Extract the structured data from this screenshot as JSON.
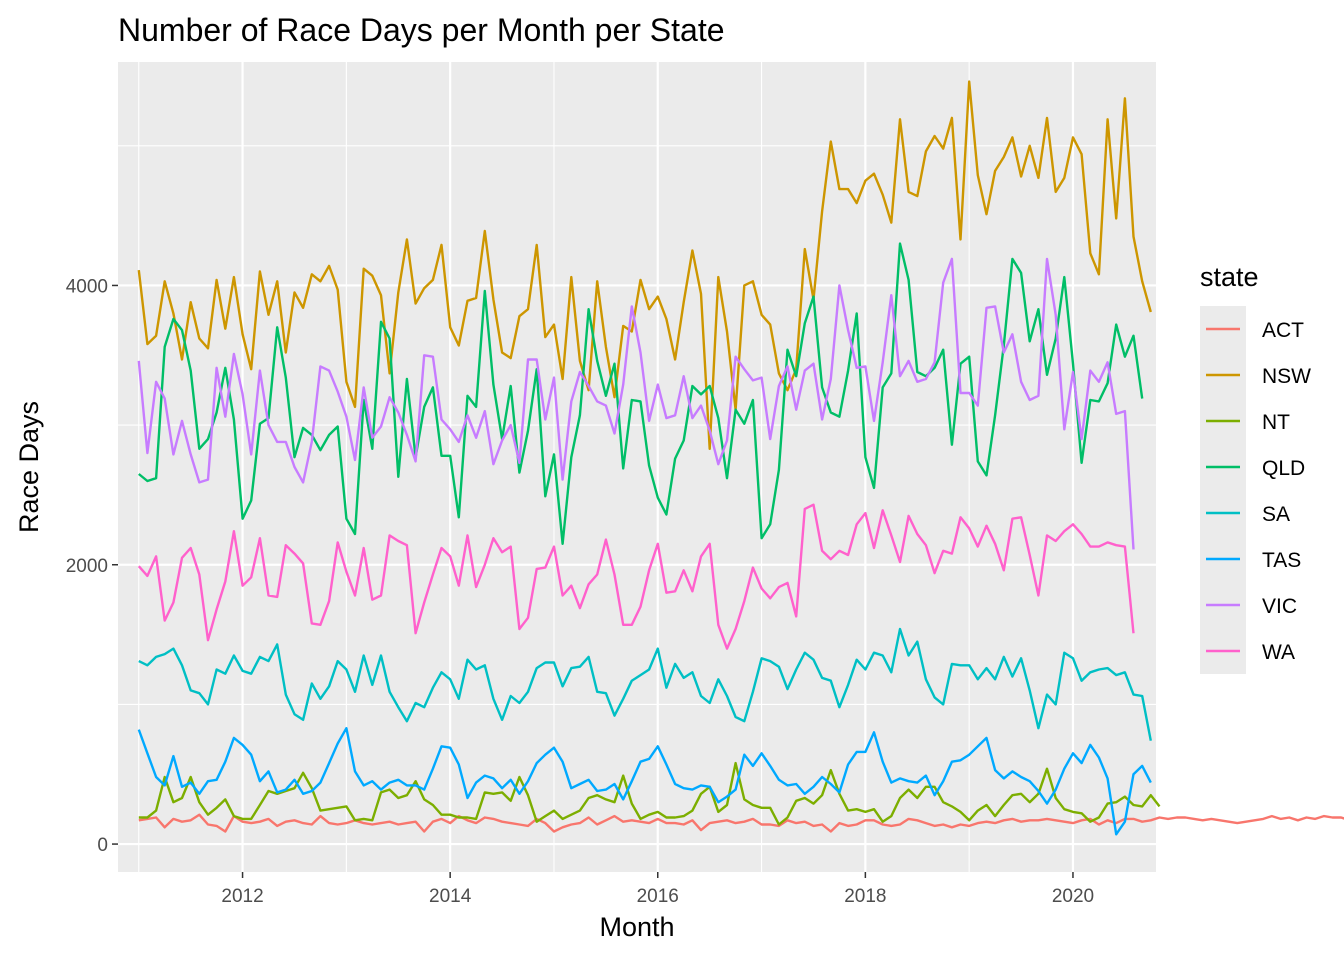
{
  "chart_data": {
    "type": "line",
    "title": "Number of Race Days per Month per State",
    "xlabel": "Month",
    "ylabel": "Race Days",
    "x_ticks": [
      "2012",
      "2014",
      "2016",
      "2018",
      "2020"
    ],
    "y_ticks": [
      "0",
      "2000",
      "4000"
    ],
    "xlim": [
      2010.8,
      2020.8
    ],
    "ylim": [
      -200,
      5600
    ],
    "grid": true,
    "legend_title": "state",
    "legend_position": "right",
    "start": "2011-01",
    "series": [
      {
        "name": "ACT",
        "color": "#F8766D",
        "values": [
          170,
          180,
          190,
          120,
          180,
          160,
          170,
          210,
          140,
          130,
          90,
          200,
          160,
          150,
          160,
          180,
          130,
          160,
          170,
          150,
          140,
          200,
          150,
          140,
          150,
          170,
          150,
          140,
          150,
          160,
          140,
          150,
          160,
          90,
          160,
          180,
          150,
          200,
          170,
          150,
          190,
          180,
          160,
          150,
          140,
          130,
          180,
          150,
          90,
          120,
          140,
          150,
          190,
          140,
          170,
          200,
          160,
          170,
          160,
          150,
          180,
          150,
          150,
          140,
          170,
          100,
          150,
          160,
          170,
          150,
          160,
          180,
          140,
          140,
          130,
          170,
          150,
          160,
          130,
          140,
          90,
          150,
          130,
          140,
          170,
          170,
          140,
          130,
          140,
          180,
          170,
          150,
          130,
          140,
          120,
          140,
          130,
          150,
          160,
          150,
          170,
          180,
          160,
          170,
          170,
          180,
          170,
          160,
          150,
          170,
          180,
          140,
          170,
          150,
          180,
          180,
          160,
          170,
          190,
          180,
          190,
          190,
          180,
          170,
          180,
          170,
          160,
          150,
          160,
          170,
          180,
          200,
          180,
          190,
          170,
          190,
          180,
          200,
          190,
          190,
          170,
          160,
          160,
          170,
          190,
          190,
          180,
          200,
          170,
          130,
          190,
          180,
          160,
          150,
          160,
          130,
          160
        ]
      },
      {
        "name": "NSW",
        "color": "#CD9600",
        "values": [
          4110,
          3580,
          3640,
          4030,
          3800,
          3470,
          3880,
          3620,
          3550,
          4040,
          3690,
          4060,
          3650,
          3400,
          4100,
          3790,
          4030,
          3520,
          3950,
          3840,
          4080,
          4030,
          4140,
          3970,
          3310,
          3130,
          4120,
          4070,
          3930,
          3370,
          3950,
          4330,
          3870,
          3980,
          4040,
          4290,
          3700,
          3570,
          3890,
          3910,
          4390,
          3900,
          3520,
          3480,
          3780,
          3830,
          4290,
          3630,
          3720,
          3330,
          4060,
          3460,
          3250,
          4030,
          3560,
          3200,
          3710,
          3670,
          4040,
          3830,
          3920,
          3760,
          3470,
          3880,
          4250,
          3940,
          2830,
          4060,
          3670,
          3110,
          4000,
          4030,
          3790,
          3720,
          3370,
          3250,
          3400,
          4260,
          3900,
          4530,
          5030,
          4690,
          4690,
          4590,
          4750,
          4800,
          4650,
          4450,
          5190,
          4670,
          4640,
          4960,
          5070,
          4980,
          5200,
          4330,
          5460,
          4790,
          4510,
          4820,
          4920,
          5060,
          4780,
          5000,
          4770,
          5200,
          4670,
          4770,
          5060,
          4940,
          4230,
          4080,
          5190,
          4480,
          5340,
          4350,
          4030,
          3810
        ]
      },
      {
        "name": "NT",
        "color": "#7CAE00",
        "values": [
          190,
          190,
          240,
          480,
          300,
          330,
          480,
          300,
          210,
          260,
          320,
          200,
          180,
          180,
          280,
          380,
          360,
          380,
          400,
          510,
          400,
          240,
          250,
          260,
          270,
          170,
          180,
          170,
          370,
          390,
          330,
          350,
          450,
          320,
          280,
          210,
          210,
          190,
          190,
          180,
          370,
          360,
          370,
          310,
          480,
          350,
          160,
          200,
          240,
          180,
          210,
          240,
          330,
          350,
          320,
          300,
          490,
          290,
          180,
          210,
          230,
          190,
          190,
          200,
          240,
          360,
          410,
          230,
          280,
          580,
          320,
          280,
          260,
          260,
          140,
          190,
          310,
          330,
          290,
          350,
          530,
          360,
          240,
          250,
          230,
          250,
          160,
          200,
          330,
          390,
          330,
          410,
          410,
          300,
          270,
          230,
          170,
          240,
          280,
          200,
          280,
          350,
          360,
          300,
          360,
          540,
          330,
          250,
          230,
          220,
          160,
          190,
          290,
          300,
          340,
          280,
          270,
          350,
          270
        ]
      },
      {
        "name": "QLD",
        "color": "#00BE67",
        "values": [
          2650,
          2600,
          2620,
          3560,
          3760,
          3680,
          3390,
          2830,
          2900,
          3090,
          3410,
          3040,
          2330,
          2460,
          3010,
          3050,
          3700,
          3340,
          2770,
          2980,
          2930,
          2820,
          2930,
          2990,
          2330,
          2220,
          3180,
          2830,
          3740,
          3620,
          2630,
          3330,
          2770,
          3130,
          3270,
          2780,
          2780,
          2340,
          3210,
          3130,
          3960,
          3290,
          2900,
          3280,
          2660,
          2960,
          3400,
          2490,
          2790,
          2150,
          2770,
          3070,
          3830,
          3460,
          3210,
          3440,
          2690,
          3180,
          3170,
          2710,
          2480,
          2360,
          2760,
          2890,
          3280,
          3220,
          3280,
          3050,
          2620,
          3110,
          3010,
          3180,
          2190,
          2290,
          2680,
          3540,
          3350,
          3730,
          3920,
          3270,
          3090,
          3060,
          3390,
          3800,
          2770,
          2550,
          3270,
          3370,
          4300,
          4040,
          3380,
          3350,
          3410,
          3540,
          2860,
          3440,
          3490,
          2740,
          2640,
          3070,
          3570,
          4190,
          4090,
          3600,
          3830,
          3360,
          3620,
          4060,
          3440,
          2730,
          3180,
          3170,
          3300,
          3720,
          3490,
          3640,
          3190
        ]
      },
      {
        "name": "SA",
        "color": "#00BFC4",
        "values": [
          1310,
          1280,
          1340,
          1360,
          1400,
          1280,
          1100,
          1080,
          1000,
          1250,
          1220,
          1350,
          1240,
          1220,
          1340,
          1310,
          1430,
          1070,
          930,
          890,
          1150,
          1040,
          1130,
          1310,
          1250,
          1090,
          1350,
          1140,
          1350,
          1090,
          980,
          880,
          1010,
          980,
          1120,
          1230,
          1180,
          1040,
          1320,
          1250,
          1280,
          1040,
          890,
          1060,
          1010,
          1090,
          1260,
          1300,
          1300,
          1130,
          1260,
          1270,
          1340,
          1090,
          1080,
          920,
          1040,
          1170,
          1210,
          1250,
          1400,
          1120,
          1290,
          1190,
          1230,
          1060,
          1010,
          1180,
          1060,
          910,
          880,
          1090,
          1330,
          1310,
          1270,
          1110,
          1250,
          1370,
          1320,
          1190,
          1170,
          980,
          1140,
          1320,
          1250,
          1370,
          1350,
          1230,
          1540,
          1350,
          1450,
          1180,
          1050,
          1000,
          1290,
          1280,
          1280,
          1180,
          1260,
          1180,
          1340,
          1200,
          1330,
          1100,
          830,
          1070,
          1000,
          1370,
          1330,
          1170,
          1230,
          1250,
          1260,
          1210,
          1230,
          1070,
          1060,
          740
        ]
      },
      {
        "name": "TAS",
        "color": "#00A9FF",
        "values": [
          820,
          650,
          480,
          420,
          630,
          410,
          440,
          360,
          450,
          460,
          590,
          760,
          710,
          640,
          450,
          520,
          370,
          390,
          460,
          360,
          380,
          440,
          580,
          720,
          830,
          520,
          420,
          450,
          390,
          440,
          460,
          420,
          420,
          390,
          540,
          700,
          690,
          570,
          330,
          440,
          490,
          470,
          400,
          460,
          360,
          450,
          580,
          640,
          690,
          590,
          400,
          430,
          460,
          380,
          390,
          430,
          320,
          450,
          590,
          610,
          700,
          570,
          430,
          400,
          390,
          420,
          410,
          300,
          340,
          390,
          640,
          560,
          650,
          560,
          460,
          420,
          430,
          360,
          410,
          480,
          430,
          370,
          570,
          660,
          660,
          800,
          590,
          440,
          470,
          450,
          440,
          490,
          350,
          450,
          590,
          600,
          640,
          700,
          760,
          530,
          470,
          520,
          480,
          450,
          380,
          290,
          390,
          540,
          650,
          580,
          710,
          620,
          470,
          70,
          160,
          500,
          560,
          440
        ]
      },
      {
        "name": "VIC",
        "color": "#C77CFF",
        "values": [
          3460,
          2800,
          3310,
          3190,
          2790,
          3030,
          2790,
          2590,
          2610,
          3410,
          3060,
          3510,
          3220,
          2790,
          3390,
          3000,
          2880,
          2880,
          2700,
          2590,
          2880,
          3420,
          3390,
          3240,
          3060,
          2750,
          3270,
          2910,
          2990,
          3200,
          3090,
          2930,
          2740,
          3500,
          3490,
          3040,
          2970,
          2880,
          3070,
          2910,
          3100,
          2720,
          2890,
          3000,
          2730,
          3470,
          3470,
          3040,
          3340,
          2610,
          3170,
          3380,
          3280,
          3170,
          3140,
          2940,
          3290,
          3850,
          3520,
          3030,
          3290,
          3050,
          3070,
          3350,
          3050,
          3140,
          2960,
          2720,
          2890,
          3490,
          3400,
          3320,
          3340,
          2900,
          3280,
          3420,
          3110,
          3390,
          3440,
          3040,
          3330,
          4000,
          3680,
          3410,
          3420,
          3030,
          3450,
          3930,
          3350,
          3460,
          3310,
          3330,
          3450,
          4020,
          4190,
          3230,
          3230,
          3140,
          3840,
          3850,
          3520,
          3650,
          3310,
          3180,
          3210,
          4190,
          3790,
          2970,
          3380,
          2900,
          3390,
          3310,
          3450,
          3080,
          3100,
          2110
        ]
      },
      {
        "name": "WA",
        "color": "#FF61CC",
        "values": [
          1990,
          1920,
          2060,
          1600,
          1730,
          2050,
          2120,
          1930,
          1460,
          1680,
          1880,
          2240,
          1850,
          1910,
          2190,
          1780,
          1770,
          2140,
          2080,
          2010,
          1580,
          1570,
          1740,
          2160,
          1950,
          1780,
          2120,
          1750,
          1780,
          2210,
          2170,
          2140,
          1510,
          1730,
          1930,
          2120,
          2060,
          1850,
          2210,
          1840,
          2000,
          2190,
          2090,
          2130,
          1540,
          1620,
          1970,
          1980,
          2130,
          1780,
          1850,
          1690,
          1860,
          1930,
          2180,
          1930,
          1570,
          1570,
          1700,
          1960,
          2150,
          1800,
          1810,
          1960,
          1810,
          2060,
          2150,
          1570,
          1400,
          1540,
          1740,
          1980,
          1830,
          1760,
          1840,
          1870,
          1630,
          2400,
          2430,
          2100,
          2040,
          2100,
          2070,
          2290,
          2370,
          2120,
          2390,
          2210,
          2020,
          2350,
          2220,
          2140,
          1940,
          2100,
          2080,
          2340,
          2260,
          2130,
          2280,
          2150,
          1960,
          2330,
          2340,
          2070,
          1780,
          2210,
          2170,
          2240,
          2290,
          2220,
          2130,
          2130,
          2160,
          2140,
          2130,
          1510
        ]
      }
    ]
  }
}
